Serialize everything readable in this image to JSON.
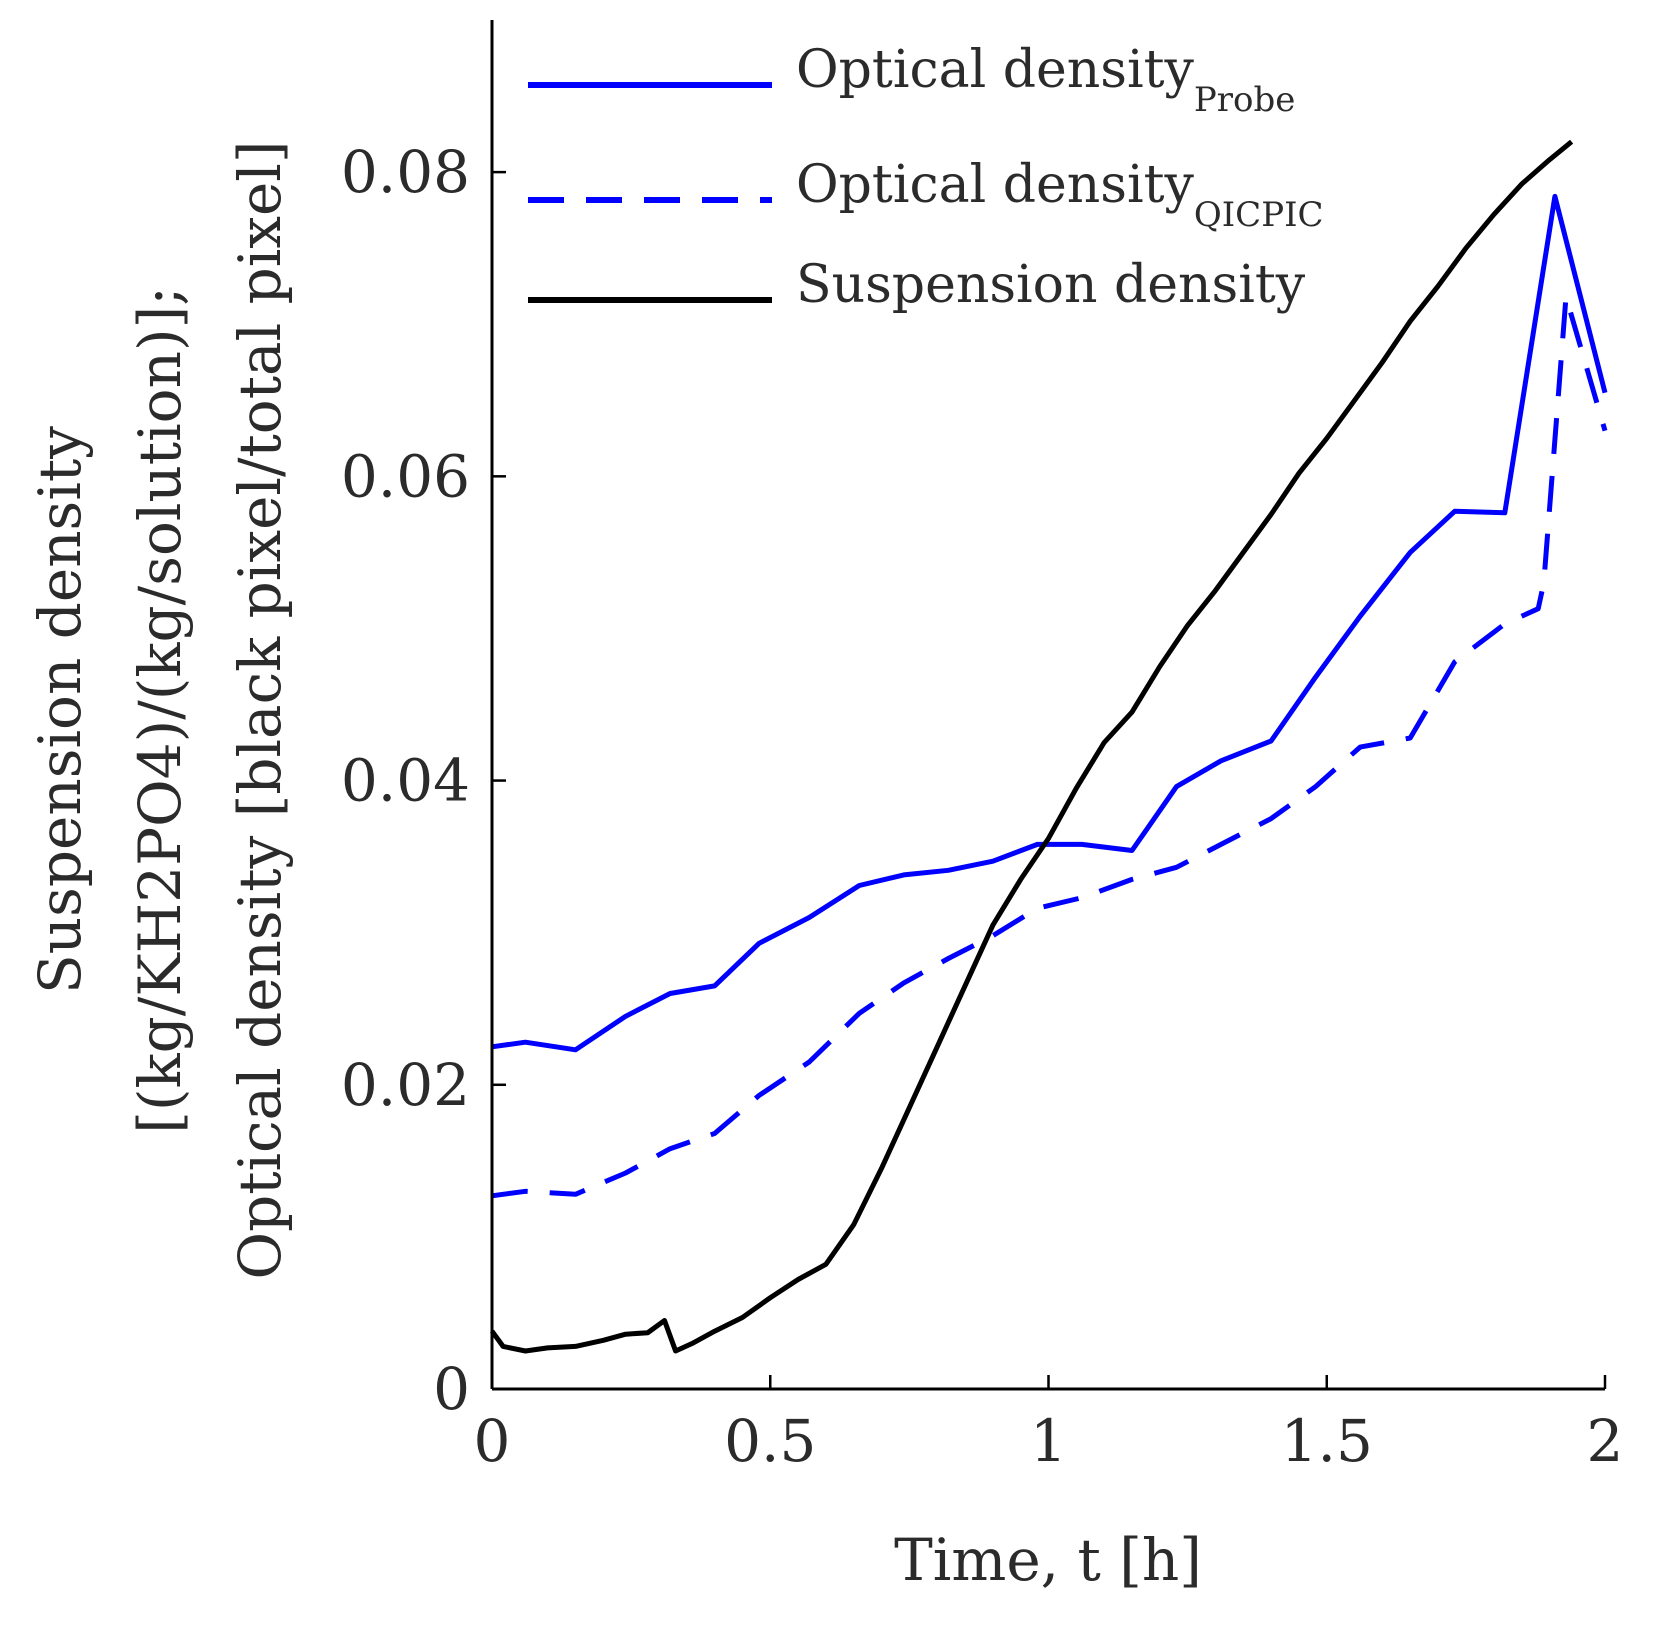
{
  "chart_data": {
    "type": "line",
    "title": "",
    "xlabel": "Time, t [h]",
    "ylabel_lines": [
      "Suspension density",
      "[(kg/KH2PO4)/(kg/solution)];",
      "Optical density [black pixel/total pixel]"
    ],
    "xlim": [
      0,
      2
    ],
    "ylim": [
      0,
      0.09
    ],
    "xticks": [
      0,
      0.5,
      1,
      1.5,
      2
    ],
    "xtick_labels": [
      "0",
      "0.5",
      "1",
      "1.5",
      "2"
    ],
    "yticks": [
      0,
      0.02,
      0.04,
      0.06,
      0.08
    ],
    "ytick_labels": [
      "0",
      "0.02",
      "0.04",
      "0.06",
      "0.08"
    ],
    "legend_position": "top-left",
    "series": [
      {
        "name": "Optical density",
        "name_sub": "Probe",
        "color": "#0000ff",
        "dash": "solid",
        "x": [
          0,
          0.06,
          0.15,
          0.24,
          0.32,
          0.4,
          0.48,
          0.57,
          0.66,
          0.74,
          0.82,
          0.9,
          0.98,
          1.06,
          1.15,
          1.23,
          1.31,
          1.4,
          1.48,
          1.56,
          1.65,
          1.73,
          1.82,
          1.91,
          2.0
        ],
        "y": [
          0.0225,
          0.0228,
          0.0223,
          0.0245,
          0.026,
          0.0265,
          0.0293,
          0.031,
          0.0331,
          0.0338,
          0.0341,
          0.0347,
          0.0358,
          0.0358,
          0.0354,
          0.0396,
          0.0413,
          0.0426,
          0.0468,
          0.0508,
          0.055,
          0.0577,
          0.0576,
          0.0784,
          0.0655
        ]
      },
      {
        "name": "Optical density",
        "name_sub": "QICPIC",
        "color": "#0000ff",
        "dash": "dashed",
        "x": [
          0,
          0.06,
          0.15,
          0.24,
          0.32,
          0.4,
          0.48,
          0.57,
          0.66,
          0.74,
          0.82,
          0.9,
          0.98,
          1.06,
          1.15,
          1.23,
          1.31,
          1.4,
          1.48,
          1.56,
          1.65,
          1.73,
          1.82,
          1.88,
          1.89,
          1.93,
          2.0
        ],
        "y": [
          0.0127,
          0.013,
          0.0128,
          0.0142,
          0.0158,
          0.0168,
          0.0193,
          0.0215,
          0.0247,
          0.0267,
          0.0283,
          0.0298,
          0.0316,
          0.0323,
          0.0335,
          0.0343,
          0.0358,
          0.0375,
          0.0396,
          0.0422,
          0.0428,
          0.0478,
          0.0503,
          0.0513,
          0.053,
          0.0718,
          0.063
        ]
      },
      {
        "name": "Suspension density",
        "name_sub": "",
        "color": "#000000",
        "dash": "solid",
        "x": [
          0,
          0.02,
          0.06,
          0.1,
          0.15,
          0.2,
          0.24,
          0.28,
          0.31,
          0.33,
          0.36,
          0.4,
          0.45,
          0.5,
          0.55,
          0.6,
          0.65,
          0.7,
          0.75,
          0.8,
          0.85,
          0.9,
          0.95,
          1.0,
          1.05,
          1.1,
          1.15,
          1.2,
          1.25,
          1.3,
          1.35,
          1.4,
          1.45,
          1.5,
          1.55,
          1.6,
          1.65,
          1.7,
          1.75,
          1.8,
          1.85,
          1.9,
          1.94
        ],
        "y": [
          0.0038,
          0.0028,
          0.0025,
          0.0027,
          0.0028,
          0.0032,
          0.0036,
          0.0037,
          0.0045,
          0.0025,
          0.003,
          0.0038,
          0.0047,
          0.006,
          0.0072,
          0.0082,
          0.0108,
          0.0145,
          0.0185,
          0.0225,
          0.0265,
          0.0305,
          0.0335,
          0.0362,
          0.0395,
          0.0425,
          0.0445,
          0.0475,
          0.0502,
          0.0525,
          0.055,
          0.0575,
          0.0602,
          0.0625,
          0.065,
          0.0675,
          0.0702,
          0.0725,
          0.075,
          0.0772,
          0.0792,
          0.0808,
          0.082
        ]
      }
    ]
  }
}
